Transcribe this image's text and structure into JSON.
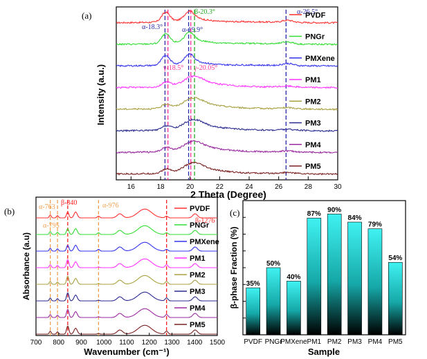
{
  "chart_data": [
    {
      "panel": "(a)",
      "type": "line",
      "xlabel": "2 Theta (Degree)",
      "ylabel": "Intensity (a.u.)",
      "xlim": [
        15,
        30
      ],
      "xticks": [
        "16",
        "18",
        "20",
        "22",
        "24",
        "26",
        "28",
        "30"
      ],
      "series": [
        {
          "name": "PVDF",
          "color": "#ff3030"
        },
        {
          "name": "PNGr",
          "color": "#33dd33"
        },
        {
          "name": "PMXene",
          "color": "#3333ee"
        },
        {
          "name": "PM1",
          "color": "#ff33ff"
        },
        {
          "name": "PM2",
          "color": "#a8a040"
        },
        {
          "name": "PM3",
          "color": "#2a2a90"
        },
        {
          "name": "PM4",
          "color": "#9a2aa0"
        },
        {
          "name": "PM5",
          "color": "#7a2020"
        }
      ],
      "reference_lines": [
        {
          "x": 18.3,
          "color": "#2a2aaa",
          "label": "α-18.3°"
        },
        {
          "x": 18.5,
          "color": "#ff3399",
          "label": "γ-18.5°"
        },
        {
          "x": 19.9,
          "color": "#2a2aaa",
          "label": "α-19.9°"
        },
        {
          "x": 20.05,
          "color": "#ff3399",
          "label": "γ-20.05°"
        },
        {
          "x": 20.3,
          "color": "#22aa22",
          "label": "β-20.3°"
        },
        {
          "x": 26.5,
          "color": "#2a2aaa",
          "label": "α-26.5°"
        }
      ]
    },
    {
      "panel": "(b)",
      "type": "line",
      "xlabel": "Wavenumber (cm⁻¹)",
      "ylabel": "Absorbance (a.u)",
      "xlim": [
        700,
        1500
      ],
      "xticks": [
        "700",
        "800",
        "900",
        "1000",
        "1100",
        "1200",
        "1300",
        "1400",
        "1500"
      ],
      "series": [
        {
          "name": "PVDF",
          "color": "#ff3030"
        },
        {
          "name": "PNGr",
          "color": "#33dd33"
        },
        {
          "name": "PMXene",
          "color": "#3333ee"
        },
        {
          "name": "PM1",
          "color": "#ff33ff"
        },
        {
          "name": "PM2",
          "color": "#a8a040"
        },
        {
          "name": "PM3",
          "color": "#2a2a90"
        },
        {
          "name": "PM4",
          "color": "#9a2aa0"
        },
        {
          "name": "PM5",
          "color": "#7a2020"
        }
      ],
      "reference_lines": [
        {
          "x": 763,
          "color": "#f0a050",
          "label": "α-763"
        },
        {
          "x": 795,
          "color": "#f0a050",
          "label": "α-795"
        },
        {
          "x": 840,
          "color": "#ff2020",
          "label": "β-840"
        },
        {
          "x": 976,
          "color": "#f0a050",
          "label": "α-976"
        },
        {
          "x": 1276,
          "color": "#ff2020",
          "label": "β-1276"
        }
      ]
    },
    {
      "panel": "(c)",
      "type": "bar",
      "xlabel": "Sample",
      "ylabel": "β-phase Fraction (%)",
      "ylim": [
        0,
        100
      ],
      "categories": [
        "PVDF",
        "PNGr",
        "PMXene",
        "PM1",
        "PM2",
        "PM3",
        "PM4",
        "PM5"
      ],
      "values": [
        35,
        50,
        40,
        87,
        90,
        84,
        79,
        54
      ],
      "data_labels": [
        "35%",
        "50%",
        "40%",
        "87%",
        "90%",
        "84%",
        "79%",
        "54%"
      ]
    }
  ]
}
